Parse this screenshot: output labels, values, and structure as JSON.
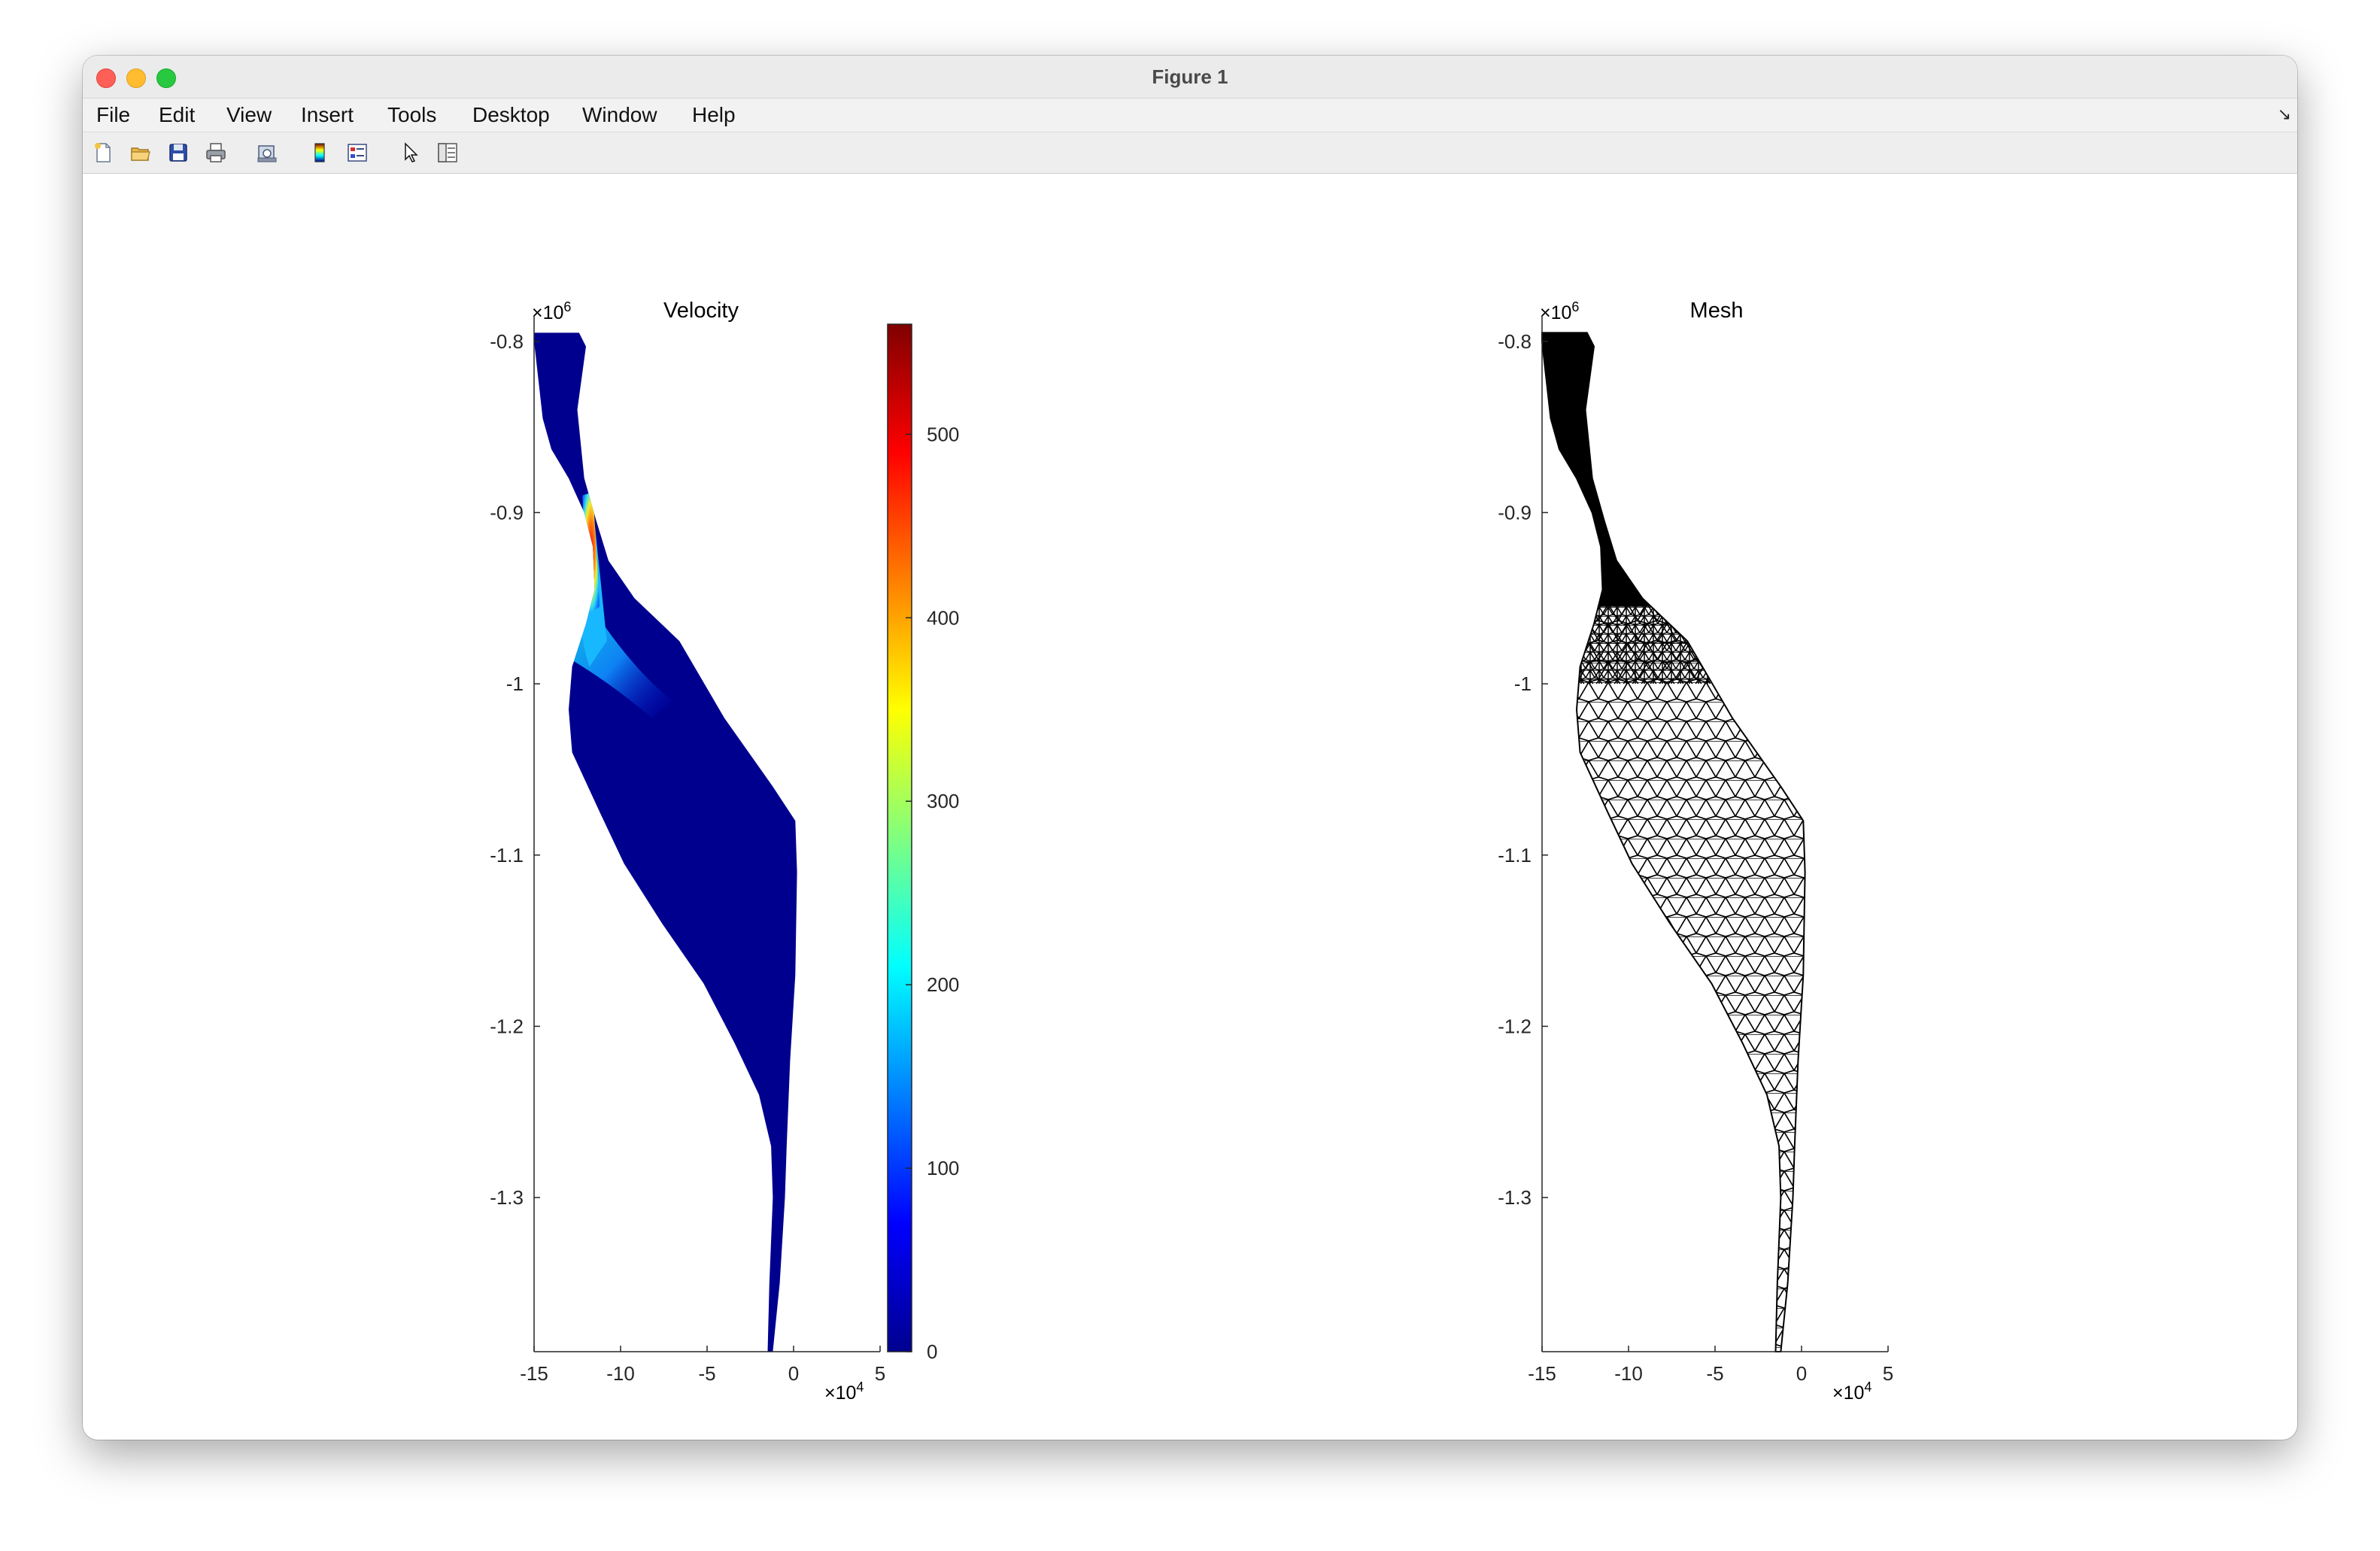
{
  "window": {
    "title": "Figure 1"
  },
  "menu": [
    "File",
    "Edit",
    "View",
    "Insert",
    "Tools",
    "Desktop",
    "Window",
    "Help"
  ],
  "toolbar": [
    "new-figure-icon",
    "open-file-icon",
    "save-icon",
    "print-icon",
    "print-preview-icon",
    "colorbar-icon",
    "legend-icon",
    "pointer-icon",
    "property-inspector-icon"
  ],
  "chart_data": [
    {
      "type": "heatmap",
      "title": "Velocity",
      "x_ticks": [
        "-15",
        "-10",
        "-5",
        "0",
        "5"
      ],
      "x_exponent": "×10",
      "x_exponent_power": "4",
      "y_ticks": [
        "-0.8",
        "-0.9",
        "-1",
        "-1.1",
        "-1.2",
        "-1.3"
      ],
      "y_exponent": "×10",
      "y_exponent_power": "6",
      "xlim": [
        -150000,
        50000
      ],
      "ylim": [
        -1390000,
        -790000
      ],
      "colormap": "jet",
      "colorbar": {
        "ticks": [
          "0",
          "100",
          "200",
          "300",
          "400",
          "500"
        ],
        "range": [
          0,
          560
        ]
      },
      "colors": {
        "background": "#00008f",
        "low": "#0000bf",
        "high": "#800000"
      }
    },
    {
      "type": "mesh",
      "title": "Mesh",
      "x_ticks": [
        "-15",
        "-10",
        "-5",
        "0",
        "5"
      ],
      "x_exponent": "×10",
      "x_exponent_power": "4",
      "y_ticks": [
        "-0.8",
        "-0.9",
        "-1",
        "-1.1",
        "-1.2",
        "-1.3"
      ],
      "y_exponent": "×10",
      "y_exponent_power": "6",
      "xlim": [
        -150000,
        50000
      ],
      "ylim": [
        -1390000,
        -790000
      ],
      "colors": {
        "edges": "#000000"
      }
    }
  ]
}
